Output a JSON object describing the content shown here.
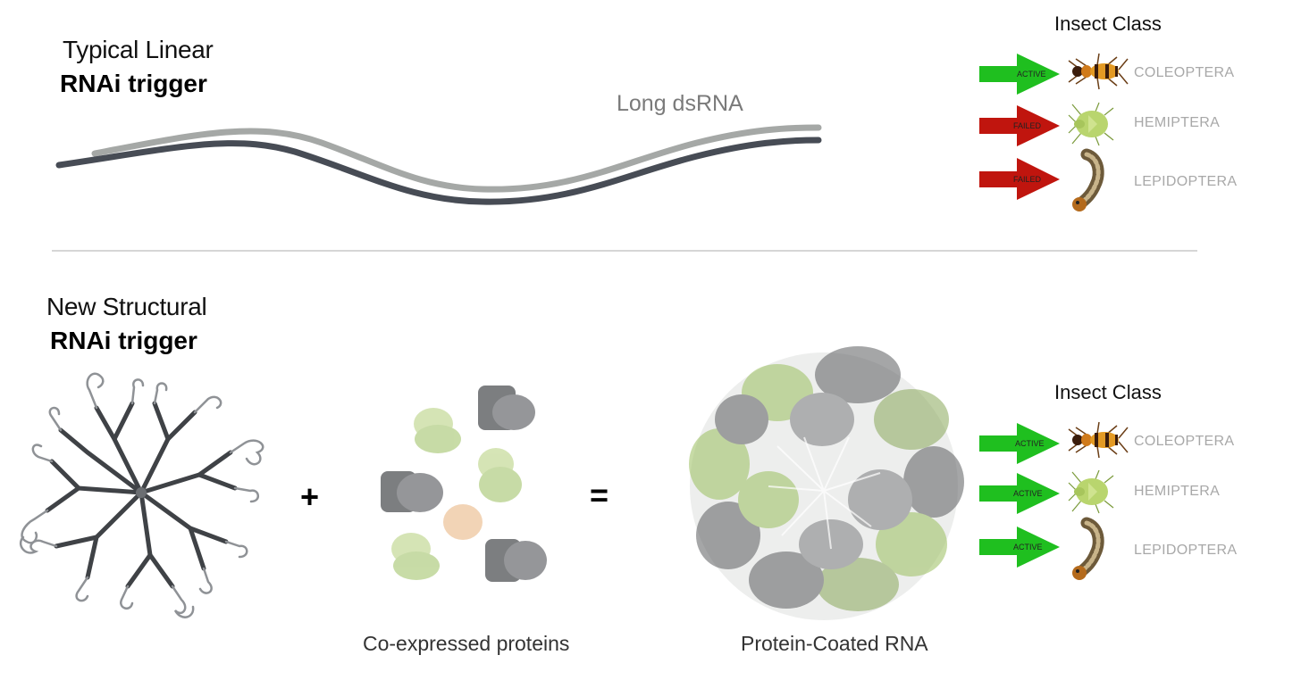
{
  "top": {
    "title_line1": "Typical Linear",
    "title_line2": "RNAi trigger",
    "dsrna_label": "Long dsRNA",
    "insect_header": "Insect Class",
    "results": [
      {
        "status": "ACTIVE",
        "class_name": "COLEOPTERA",
        "color": "#1fbf1f"
      },
      {
        "status": "FAILED",
        "class_name": "HEMIPTERA",
        "color": "#c0150e"
      },
      {
        "status": "FAILED",
        "class_name": "LEPIDOPTERA",
        "color": "#c0150e"
      }
    ]
  },
  "bottom": {
    "title_line1": "New Structural",
    "title_line2": "RNAi trigger",
    "plus_sign": "+",
    "equals_sign": "=",
    "proteins_label": "Co-expressed proteins",
    "coated_label": "Protein-Coated RNA",
    "insect_header": "Insect Class",
    "results": [
      {
        "status": "ACTIVE",
        "class_name": "COLEOPTERA",
        "color": "#1fbf1f"
      },
      {
        "status": "ACTIVE",
        "class_name": "HEMIPTERA",
        "color": "#1fbf1f"
      },
      {
        "status": "ACTIVE",
        "class_name": "LEPIDOPTERA",
        "color": "#1fbf1f"
      }
    ]
  },
  "icons": {
    "beetle": "beetle-icon",
    "stink_bug": "stink-bug-icon",
    "caterpillar": "caterpillar-icon"
  }
}
